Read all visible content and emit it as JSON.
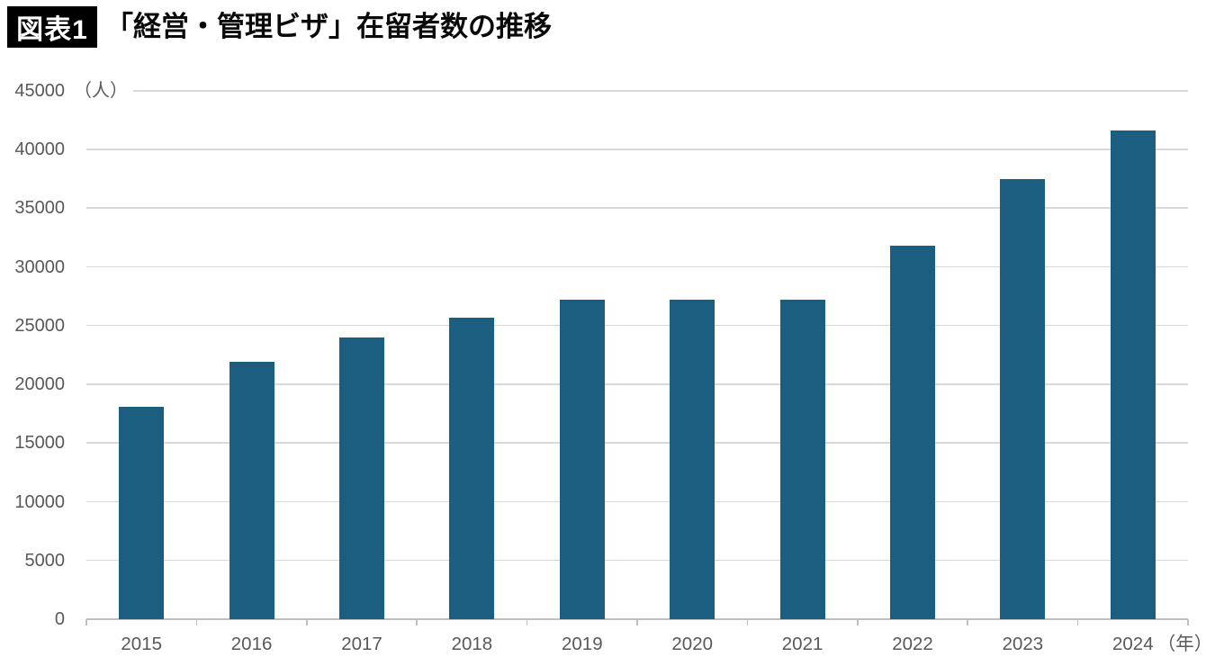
{
  "header": {
    "badge": "図表1",
    "title": "「経営・管理ビザ」在留者数の推移"
  },
  "chart_data": {
    "type": "bar",
    "title": "「経営・管理ビザ」在留者数の推移",
    "categories": [
      "2015",
      "2016",
      "2017",
      "2018",
      "2019",
      "2020",
      "2021",
      "2022",
      "2023",
      "2024"
    ],
    "values": [
      18100,
      21900,
      24000,
      25700,
      27200,
      27200,
      27200,
      31800,
      37500,
      41600
    ],
    "ylabel_unit": "（人）",
    "xlabel_unit": "（年）",
    "ylim": [
      0,
      45000
    ],
    "yticks": [
      0,
      5000,
      10000,
      15000,
      20000,
      25000,
      30000,
      35000,
      40000,
      45000
    ],
    "grid": true,
    "legend_position": "none",
    "bar_color": "#1c5e7f",
    "gridline_color": "#d9d9d9",
    "axis_color": "#bfbfbf",
    "label_color": "#595959"
  }
}
